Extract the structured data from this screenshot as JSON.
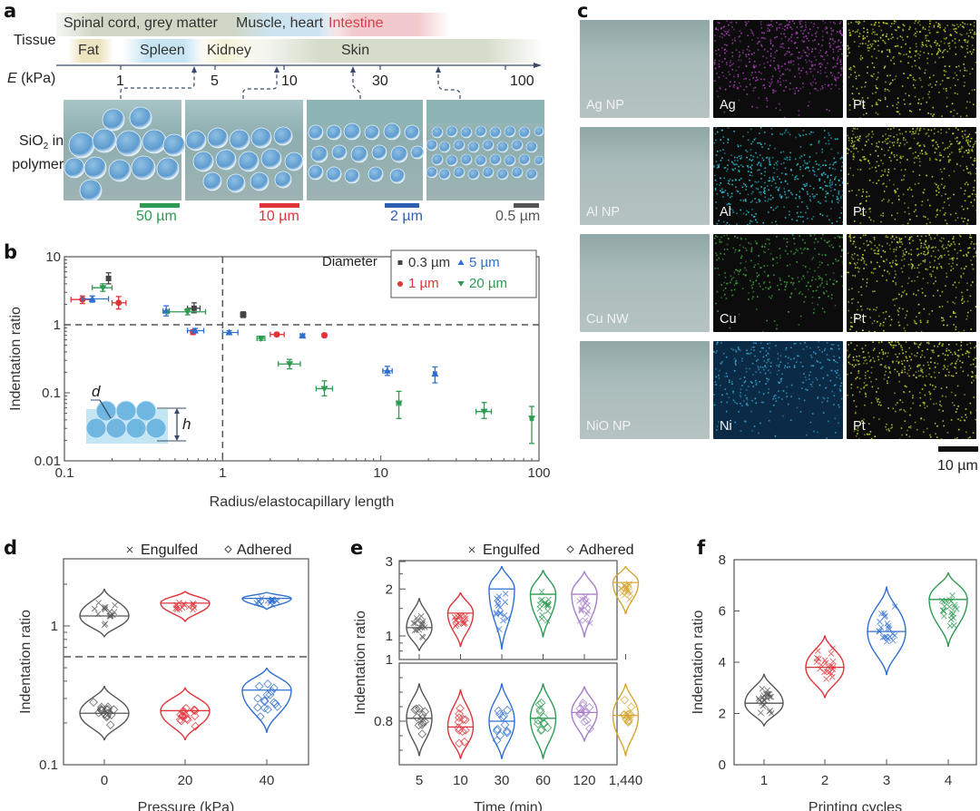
{
  "panel_labels": {
    "a": "a",
    "b": "b",
    "c": "c",
    "d": "d",
    "e": "e",
    "f": "f"
  },
  "panel_a": {
    "row_tissue_label": "Tissue",
    "row_modulus_label_italic": "E",
    "row_modulus_label_unit": "(kPa)",
    "row_image_label_line1_pre": "SiO",
    "row_image_label_line1_sub": "2",
    "row_image_label_line1_post": " in",
    "row_image_label_line2": "polymer",
    "tissues_top": [
      {
        "name": "Spinal cord, grey matter",
        "color": "#cfd6c4"
      },
      {
        "name": "Muscle, heart",
        "color": "#cde3f0"
      },
      {
        "name": "Intestine",
        "color": "#f2c9cc"
      }
    ],
    "tissues_bottom": [
      {
        "name": "Fat",
        "color": "#ece3bf"
      },
      {
        "name": "Spleen",
        "color": "#c7e4f3"
      },
      {
        "name": "Kidney",
        "color": "#f4f1d6"
      },
      {
        "name": "Skin",
        "color": "#d5dcc9"
      }
    ],
    "axis_ticks": [
      "1",
      "5",
      "10",
      "30",
      "100"
    ],
    "scale_bars": [
      {
        "label": "50 µm",
        "color": "#2e9a52"
      },
      {
        "label": "10 µm",
        "color": "#e0343b"
      },
      {
        "label": "2 µm",
        "color": "#2f5fb3"
      },
      {
        "label": "0.5 µm",
        "color": "#555555"
      }
    ]
  },
  "panel_c": {
    "rows": [
      {
        "sample": "Ag NP",
        "element": "Ag",
        "element_color": "#b040c0",
        "pt": "Pt"
      },
      {
        "sample": "Al NP",
        "element": "Al",
        "element_color": "#29c3d8",
        "pt": "Pt"
      },
      {
        "sample": "Cu NW",
        "element": "Cu",
        "element_color": "#3fae3f",
        "pt": "Pt"
      },
      {
        "sample": "NiO NP",
        "element": "Ni",
        "element_color": "#39a9d3",
        "pt": "Pt"
      }
    ],
    "pt_color": "#c8d832",
    "scale_bar_label": "10 µm"
  },
  "chart_data": [
    {
      "id": "b",
      "type": "scatter",
      "title": "",
      "xlabel": "Radius/elastocapillary length",
      "ylabel": "Indentation ratio",
      "xscale": "log",
      "yscale": "log",
      "xlim": [
        0.1,
        100
      ],
      "ylim": [
        0.01,
        10
      ],
      "xticks": [
        "0.1",
        "1",
        "10",
        "100"
      ],
      "yticks": [
        "0.01",
        "0.1",
        "1",
        "10"
      ],
      "reference_lines": {
        "x": 1,
        "y": 1
      },
      "legend": {
        "title": "Diameter",
        "placement": "top-right"
      },
      "series": [
        {
          "name": "0.3 µm",
          "color": "#444444",
          "marker": "square",
          "points": [
            {
              "x": 0.19,
              "y": 4.8,
              "xerr": [
                0.185,
                0.195
              ],
              "yerr": [
                4.0,
                5.8
              ]
            },
            {
              "x": 0.66,
              "y": 1.75,
              "xerr": [
                0.6,
                0.72
              ],
              "yerr": [
                1.5,
                2.1
              ]
            },
            {
              "x": 1.35,
              "y": 1.4,
              "xerr": [
                1.3,
                1.4
              ],
              "yerr": [
                1.28,
                1.55
              ]
            }
          ]
        },
        {
          "name": "1 µm",
          "color": "#e0343b",
          "marker": "circle",
          "points": [
            {
              "x": 0.13,
              "y": 2.35,
              "xerr": [
                0.11,
                0.15
              ],
              "yerr": [
                2.05,
                2.65
              ]
            },
            {
              "x": 0.22,
              "y": 2.1,
              "xerr": [
                0.2,
                0.245
              ],
              "yerr": [
                1.7,
                2.6
              ]
            },
            {
              "x": 0.65,
              "y": 0.78,
              "xerr": [
                0.63,
                0.67
              ],
              "yerr": [
                0.72,
                0.84
              ]
            },
            {
              "x": 2.2,
              "y": 0.72,
              "xerr": [
                2.0,
                2.45
              ],
              "yerr": [
                0.68,
                0.76
              ]
            },
            {
              "x": 4.4,
              "y": 0.7,
              "xerr": [
                4.3,
                4.5
              ],
              "yerr": [
                0.66,
                0.74
              ]
            }
          ]
        },
        {
          "name": "5 µm",
          "color": "#2f6fd1",
          "marker": "triangle-up",
          "points": [
            {
              "x": 0.15,
              "y": 2.4,
              "xerr": [
                0.13,
                0.19
              ],
              "yerr": [
                2.15,
                2.65
              ]
            },
            {
              "x": 0.44,
              "y": 1.6,
              "xerr": [
                0.42,
                0.46
              ],
              "yerr": [
                1.35,
                1.9
              ]
            },
            {
              "x": 0.67,
              "y": 0.82,
              "xerr": [
                0.6,
                0.76
              ],
              "yerr": [
                0.76,
                0.88
              ]
            },
            {
              "x": 1.1,
              "y": 0.77,
              "xerr": [
                1.0,
                1.25
              ],
              "yerr": [
                0.72,
                0.82
              ]
            },
            {
              "x": 3.2,
              "y": 0.69,
              "xerr": [
                3.1,
                3.3
              ],
              "yerr": [
                0.65,
                0.73
              ]
            },
            {
              "x": 11,
              "y": 0.21,
              "xerr": [
                10.3,
                11.8
              ],
              "yerr": [
                0.18,
                0.245
              ]
            },
            {
              "x": 22,
              "y": 0.19,
              "xerr": [
                21.5,
                22.5
              ],
              "yerr": [
                0.14,
                0.24
              ]
            }
          ]
        },
        {
          "name": "20 µm",
          "color": "#2e9a52",
          "marker": "triangle-down",
          "points": [
            {
              "x": 0.175,
              "y": 3.5,
              "xerr": [
                0.15,
                0.2
              ],
              "yerr": [
                3.1,
                4.0
              ]
            },
            {
              "x": 0.6,
              "y": 1.55,
              "xerr": [
                0.45,
                0.78
              ],
              "yerr": [
                1.4,
                1.72
              ]
            },
            {
              "x": 1.75,
              "y": 0.63,
              "xerr": [
                1.65,
                1.85
              ],
              "yerr": [
                0.59,
                0.67
              ]
            },
            {
              "x": 2.65,
              "y": 0.265,
              "xerr": [
                2.25,
                3.1
              ],
              "yerr": [
                0.225,
                0.31
              ]
            },
            {
              "x": 4.4,
              "y": 0.115,
              "xerr": [
                3.9,
                4.95
              ],
              "yerr": [
                0.09,
                0.15
              ]
            },
            {
              "x": 13,
              "y": 0.07,
              "xerr": [
                12.6,
                13.4
              ],
              "yerr": [
                0.042,
                0.105
              ]
            },
            {
              "x": 45,
              "y": 0.053,
              "xerr": [
                40,
                50
              ],
              "yerr": [
                0.042,
                0.072
              ]
            },
            {
              "x": 90,
              "y": 0.042,
              "xerr": [
                88,
                92
              ],
              "yerr": [
                0.018,
                0.063
              ]
            }
          ]
        }
      ],
      "inset_labels": {
        "d": "d",
        "h": "h"
      }
    },
    {
      "id": "d",
      "type": "violin",
      "xlabel": "Pressure (kPa)",
      "ylabel": "Indentation ratio",
      "yscale": "log",
      "ylim": [
        0.1,
        2.2
      ],
      "yticks": [
        "0.1",
        "1"
      ],
      "categories": [
        "0",
        "20",
        "40"
      ],
      "colors": [
        "#555555",
        "#e0343b",
        "#2f6fd1"
      ],
      "threshold_line_y": 0.6,
      "legend": [
        {
          "marker": "×",
          "label": "Engulfed"
        },
        {
          "marker": "◇",
          "label": "Adhered"
        }
      ],
      "series": [
        {
          "name": "Engulfed",
          "marker": "x",
          "medians": [
            1.18,
            1.46,
            1.58
          ],
          "ranges": [
            [
              0.83,
              1.85
            ],
            [
              1.07,
              1.78
            ],
            [
              1.31,
              1.75
            ]
          ]
        },
        {
          "name": "Adhered",
          "marker": "diamond",
          "medians": [
            0.235,
            0.245,
            0.345
          ],
          "ranges": [
            [
              0.15,
              0.37
            ],
            [
              0.15,
              0.36
            ],
            [
              0.17,
              0.5
            ]
          ]
        }
      ]
    },
    {
      "id": "e",
      "type": "violin",
      "xlabel": "Time (min)",
      "ylabel": "Indentation ratio",
      "categories": [
        "5",
        "10",
        "30",
        "60",
        "120",
        "1,440"
      ],
      "colors": [
        "#555555",
        "#e0343b",
        "#2f6fd1",
        "#2e9a52",
        "#a77fc9",
        "#d4a531"
      ],
      "legend": [
        {
          "marker": "×",
          "label": "Engulfed"
        },
        {
          "marker": "◇",
          "label": "Adhered"
        }
      ],
      "subplots": [
        {
          "name": "Engulfed",
          "marker": "x",
          "yscale": "log",
          "ylim": [
            0.75,
            3
          ],
          "yticks": [
            "1",
            "2",
            "3"
          ],
          "medians": [
            1.13,
            1.4,
            2.0,
            1.85,
            1.85,
            2.2
          ],
          "ranges": [
            [
              0.8,
              1.75
            ],
            [
              0.85,
              1.9
            ],
            [
              0.82,
              2.8
            ],
            [
              0.98,
              2.65
            ],
            [
              0.98,
              2.6
            ],
            [
              1.38,
              2.8
            ]
          ]
        },
        {
          "name": "Adhered",
          "marker": "diamond",
          "yscale": "linear",
          "ylim": [
            0.6,
            1.0
          ],
          "yticks": [
            "0.8",
            "1"
          ],
          "medians": [
            0.81,
            0.78,
            0.8,
            0.81,
            0.83,
            0.82
          ],
          "ranges": [
            [
              0.68,
              0.93
            ],
            [
              0.67,
              0.91
            ],
            [
              0.67,
              0.93
            ],
            [
              0.67,
              0.93
            ],
            [
              0.73,
              0.92
            ],
            [
              0.68,
              0.93
            ]
          ]
        }
      ]
    },
    {
      "id": "f",
      "type": "violin",
      "xlabel": "Printing cycles",
      "ylabel": "Indentation ratio",
      "yscale": "linear",
      "ylim": [
        0,
        8
      ],
      "yticks": [
        "0",
        "2",
        "4",
        "6",
        "8"
      ],
      "categories": [
        "1",
        "2",
        "3",
        "4"
      ],
      "colors": [
        "#555555",
        "#e0343b",
        "#2f6fd1",
        "#2e9a52"
      ],
      "marker": "x",
      "medians": [
        2.4,
        3.8,
        5.2,
        6.45
      ],
      "ranges": [
        [
          1.5,
          3.55
        ],
        [
          2.6,
          5.05
        ],
        [
          3.5,
          6.95
        ],
        [
          4.6,
          7.5
        ]
      ]
    }
  ]
}
